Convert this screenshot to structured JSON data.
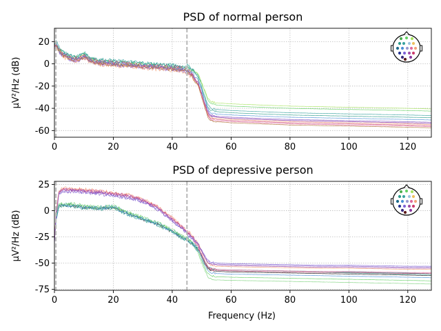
{
  "figure": {
    "xlabel": "Frequency (Hz)"
  },
  "chart_data": [
    {
      "type": "line",
      "title": "PSD of normal person",
      "xlabel": "",
      "ylabel": "µV²/Hz (dB)",
      "xlim": [
        0,
        128
      ],
      "ylim": [
        -66,
        32
      ],
      "x_ticks": [
        0,
        20,
        40,
        60,
        80,
        100,
        120
      ],
      "y_ticks": [
        20,
        0,
        -20,
        -40,
        -60
      ],
      "grid": true,
      "vlines": [
        0.5,
        45
      ],
      "base_shape": {
        "x": [
          0,
          0.5,
          1.5,
          3,
          6,
          8,
          10,
          12,
          15,
          20,
          25,
          30,
          35,
          40,
          43,
          45,
          47,
          49,
          50,
          51,
          52,
          53,
          55,
          60,
          70,
          80,
          90,
          100,
          110,
          120,
          128
        ],
        "y": [
          15,
          18,
          12,
          8,
          4,
          4,
          7,
          3,
          1,
          0,
          -1,
          -2,
          -3,
          -4,
          -5,
          -6,
          -10,
          -18,
          -26,
          -34,
          -42,
          -46,
          -47,
          -48,
          -49,
          -50,
          -50.5,
          -51,
          -51.5,
          -52,
          -52.5
        ]
      },
      "series": [
        {
          "color": "#66d166",
          "low_offset": 3,
          "high_offset": 10
        },
        {
          "color": "#a6e35f",
          "low_offset": 1,
          "high_offset": 12
        },
        {
          "color": "#3aa3a0",
          "low_offset": 5,
          "high_offset": 6
        },
        {
          "color": "#2e9c8c",
          "low_offset": 4,
          "high_offset": 4
        },
        {
          "color": "#7f63d6",
          "low_offset": -1,
          "high_offset": -1
        },
        {
          "color": "#8b5fc9",
          "low_offset": -2,
          "high_offset": 0
        },
        {
          "color": "#e06a9e",
          "low_offset": 0,
          "high_offset": -4
        },
        {
          "color": "#cc3d6e",
          "low_offset": 2,
          "high_offset": -3
        },
        {
          "color": "#f4a37a",
          "low_offset": -3,
          "high_offset": -2
        },
        {
          "color": "#a04ea8",
          "low_offset": 0,
          "high_offset": -1
        },
        {
          "color": "#4c8fd6",
          "low_offset": 1,
          "high_offset": 2
        },
        {
          "color": "#b07a3a",
          "low_offset": -1,
          "high_offset": -5
        }
      ]
    },
    {
      "type": "line",
      "title": "PSD of depressive person",
      "xlabel": "Frequency (Hz)",
      "ylabel": "µV²/Hz (dB)",
      "xlim": [
        0,
        128
      ],
      "ylim": [
        -76,
        28
      ],
      "x_ticks": [
        0,
        20,
        40,
        60,
        80,
        100,
        120
      ],
      "y_ticks": [
        25,
        0,
        -25,
        -50,
        -75
      ],
      "grid": true,
      "vlines": [
        0.5,
        45
      ],
      "groups": [
        {
          "name_hidden": true,
          "shape": {
            "x": [
              0,
              0.5,
              1.5,
              3,
              6,
              10,
              15,
              20,
              25,
              30,
              35,
              40,
              43,
              45,
              47,
              49,
              50,
              51,
              52,
              53,
              55,
              60,
              70,
              80,
              90,
              100,
              110,
              120,
              128
            ],
            "y": [
              -30,
              -10,
              5,
              5,
              5,
              3,
              2,
              3,
              -3,
              -8,
              -13,
              -20,
              -25,
              -28,
              -32,
              -38,
              -44,
              -50,
              -55,
              -57,
              -58,
              -58.5,
              -59,
              -59.5,
              -60,
              -60.5,
              -61,
              -61.5,
              -62
            ]
          },
          "series": [
            {
              "color": "#222222",
              "low_offset": 0,
              "high_offset": 0
            },
            {
              "color": "#3aa3a0",
              "low_offset": 2,
              "high_offset": 2
            },
            {
              "color": "#66d166",
              "low_offset": 1,
              "high_offset": -5
            },
            {
              "color": "#7fd37f",
              "low_offset": 3,
              "high_offset": -8
            },
            {
              "color": "#2e9c8c",
              "low_offset": -1,
              "high_offset": 1
            },
            {
              "color": "#4c8fd6",
              "low_offset": 0,
              "high_offset": -2
            }
          ]
        },
        {
          "name_hidden": true,
          "shape": {
            "x": [
              0,
              0.5,
              1.5,
              3,
              6,
              10,
              15,
              20,
              25,
              30,
              35,
              40,
              43,
              45,
              47,
              49,
              50,
              51,
              52,
              53,
              55,
              60,
              70,
              80,
              90,
              100,
              110,
              120,
              128
            ],
            "y": [
              -30,
              -5,
              18,
              20,
              20,
              19,
              18,
              16,
              14,
              10,
              3,
              -8,
              -15,
              -20,
              -26,
              -34,
              -40,
              -46,
              -51,
              -53,
              -54,
              -54.5,
              -55,
              -55.5,
              -56,
              -56,
              -56.5,
              -57,
              -57
            ]
          },
          "series": [
            {
              "color": "#e06a9e",
              "low_offset": 1,
              "high_offset": -2
            },
            {
              "color": "#cc3d6e",
              "low_offset": 0,
              "high_offset": -3
            },
            {
              "color": "#f4a37a",
              "low_offset": 2,
              "high_offset": 1
            },
            {
              "color": "#8b5fc9",
              "low_offset": -3,
              "high_offset": 3
            },
            {
              "color": "#7f63d6",
              "low_offset": -2,
              "high_offset": 4
            },
            {
              "color": "#a04ea8",
              "low_offset": 0,
              "high_offset": 2
            }
          ]
        }
      ]
    }
  ],
  "legend_icon": {
    "name": "sensor-layout-head-icon",
    "dots": [
      {
        "dx": -8,
        "dy": -14,
        "color": "#4caf50"
      },
      {
        "dx": 0,
        "dy": -15,
        "color": "#66d166"
      },
      {
        "dx": 8,
        "dy": -14,
        "color": "#a6e35f"
      },
      {
        "dx": -10,
        "dy": -7,
        "color": "#2e9c8c"
      },
      {
        "dx": -4,
        "dy": -7,
        "color": "#3aa3a0"
      },
      {
        "dx": 4,
        "dy": -7,
        "color": "#9ec6e0"
      },
      {
        "dx": 10,
        "dy": -7,
        "color": "#f0c060"
      },
      {
        "dx": -13,
        "dy": 0,
        "color": "#1e6b8c"
      },
      {
        "dx": -6,
        "dy": 0,
        "color": "#4c8fd6"
      },
      {
        "dx": 1,
        "dy": 0,
        "color": "#9a9ad0"
      },
      {
        "dx": 7,
        "dy": 0,
        "color": "#e06a9e"
      },
      {
        "dx": 13,
        "dy": 0,
        "color": "#f4a37a"
      },
      {
        "dx": -10,
        "dy": 7,
        "color": "#283593"
      },
      {
        "dx": -3,
        "dy": 7,
        "color": "#7f63d6"
      },
      {
        "dx": 4,
        "dy": 7,
        "color": "#a04ea8"
      },
      {
        "dx": 10,
        "dy": 7,
        "color": "#cc3d6e"
      },
      {
        "dx": -6,
        "dy": 13,
        "color": "#3a2a7a"
      },
      {
        "dx": 6,
        "dy": 13,
        "color": "#8b3a9e"
      },
      {
        "dx": -2,
        "dy": 16,
        "color": "#5b1a1a"
      }
    ]
  }
}
